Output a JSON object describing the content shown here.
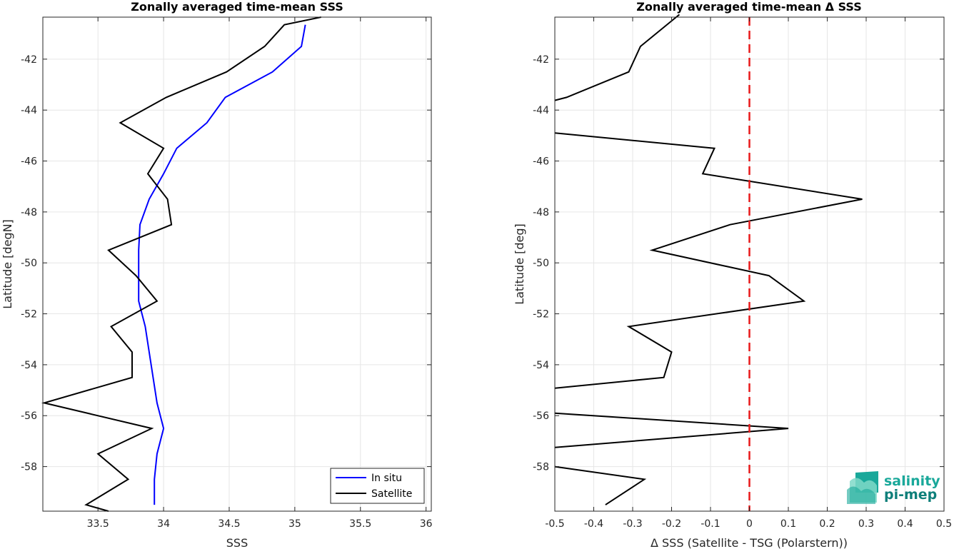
{
  "chart_data": [
    {
      "type": "line",
      "title": "Zonally averaged time-mean SSS",
      "xlabel": "SSS",
      "ylabel": "Latitude [degN]",
      "xlim": [
        33.08,
        36.04
      ],
      "ylim": [
        -59.75,
        -40.35
      ],
      "xticks": [
        33.5,
        34,
        34.5,
        35,
        35.5,
        36
      ],
      "xtick_labels": [
        "33.5",
        "34",
        "34.5",
        "35",
        "35.5",
        "36"
      ],
      "yticks": [
        -58,
        -56,
        -54,
        -52,
        -50,
        -48,
        -46,
        -44,
        -42
      ],
      "ytick_labels": [
        "-58",
        "-56",
        "-54",
        "-52",
        "-50",
        "-48",
        "-46",
        "-44",
        "-42"
      ],
      "grid": true,
      "legend_position": "bottom-right",
      "series": [
        {
          "name": "In situ",
          "color": "#0000ff",
          "x": [
            35.08,
            35.05,
            34.83,
            34.47,
            34.33,
            34.1,
            34.0,
            33.89,
            33.82,
            33.81,
            33.81,
            33.86,
            33.89,
            33.95,
            34.0,
            33.95,
            33.93,
            33.93
          ],
          "y": [
            -40.65,
            -41.5,
            -42.5,
            -43.5,
            -44.5,
            -45.5,
            -46.5,
            -47.5,
            -48.5,
            -49.5,
            -51.5,
            -52.5,
            -53.5,
            -55.5,
            -56.5,
            -57.5,
            -58.5,
            -59.5
          ]
        },
        {
          "name": "Satellite",
          "color": "#000000",
          "x": [
            35.2,
            34.92,
            34.77,
            34.48,
            34.02,
            33.67,
            34.0,
            33.88,
            34.03,
            34.06,
            33.58,
            33.79,
            33.95,
            33.6,
            33.76,
            33.76,
            33.09,
            33.91,
            33.5,
            33.73,
            33.41,
            33.58
          ],
          "y": [
            -40.35,
            -40.65,
            -41.5,
            -42.5,
            -43.5,
            -44.5,
            -45.5,
            -46.5,
            -47.5,
            -48.5,
            -49.5,
            -50.5,
            -51.5,
            -52.5,
            -53.5,
            -54.5,
            -55.5,
            -56.5,
            -57.5,
            -58.5,
            -59.5,
            -59.75
          ]
        }
      ]
    },
    {
      "type": "line",
      "title": "Zonally averaged time-mean Δ SSS",
      "xlabel": "Δ SSS (Satellite - TSG (Polarstern))",
      "ylabel": "Latitude [deg]",
      "xlim": [
        -0.5,
        0.5
      ],
      "ylim": [
        -59.75,
        -40.35
      ],
      "xticks": [
        -0.5,
        -0.4,
        -0.3,
        -0.2,
        -0.1,
        0,
        0.1,
        0.2,
        0.3,
        0.4,
        0.5
      ],
      "xtick_labels": [
        "-0.5",
        "-0.4",
        "-0.3",
        "-0.2",
        "-0.1",
        "0",
        "0.1",
        "0.2",
        "0.3",
        "0.4",
        "0.5"
      ],
      "yticks": [
        -58,
        -56,
        -54,
        -52,
        -50,
        -48,
        -46,
        -44,
        -42
      ],
      "ytick_labels": [
        "-58",
        "-56",
        "-54",
        "-52",
        "-50",
        "-48",
        "-46",
        "-44",
        "-42"
      ],
      "grid": true,
      "reference_line": {
        "x": 0,
        "color": "#e8191a",
        "style": "dashed"
      },
      "series": [
        {
          "color": "#000000",
          "segments": [
            {
              "x": [
                -0.18,
                -0.28,
                -0.31,
                -0.47,
                -0.5
              ],
              "y": [
                -40.25,
                -41.5,
                -42.5,
                -43.5,
                -43.62
              ]
            },
            {
              "x": [
                -0.5,
                -0.09,
                -0.12,
                0.29,
                -0.05,
                -0.25,
                0.05,
                0.14,
                -0.31,
                -0.2,
                -0.22,
                -0.5
              ],
              "y": [
                -44.9,
                -45.5,
                -46.5,
                -47.5,
                -48.5,
                -49.5,
                -50.5,
                -51.5,
                -52.5,
                -53.5,
                -54.5,
                -54.92
              ]
            },
            {
              "x": [
                -0.5,
                0.1,
                -0.5
              ],
              "y": [
                -55.9,
                -56.5,
                -57.25
              ]
            },
            {
              "x": [
                -0.5,
                -0.27,
                -0.37
              ],
              "y": [
                -58.0,
                -58.5,
                -59.5
              ]
            }
          ]
        }
      ]
    }
  ],
  "legend": {
    "entries": [
      {
        "label": "In situ",
        "color": "#0000ff"
      },
      {
        "label": "Satellite",
        "color": "#000000"
      }
    ]
  },
  "logo": {
    "line1": "salinity",
    "line2": "pi-mep",
    "colors": [
      "#19a89a",
      "#7fd9c8",
      "#0e7f7a"
    ]
  }
}
